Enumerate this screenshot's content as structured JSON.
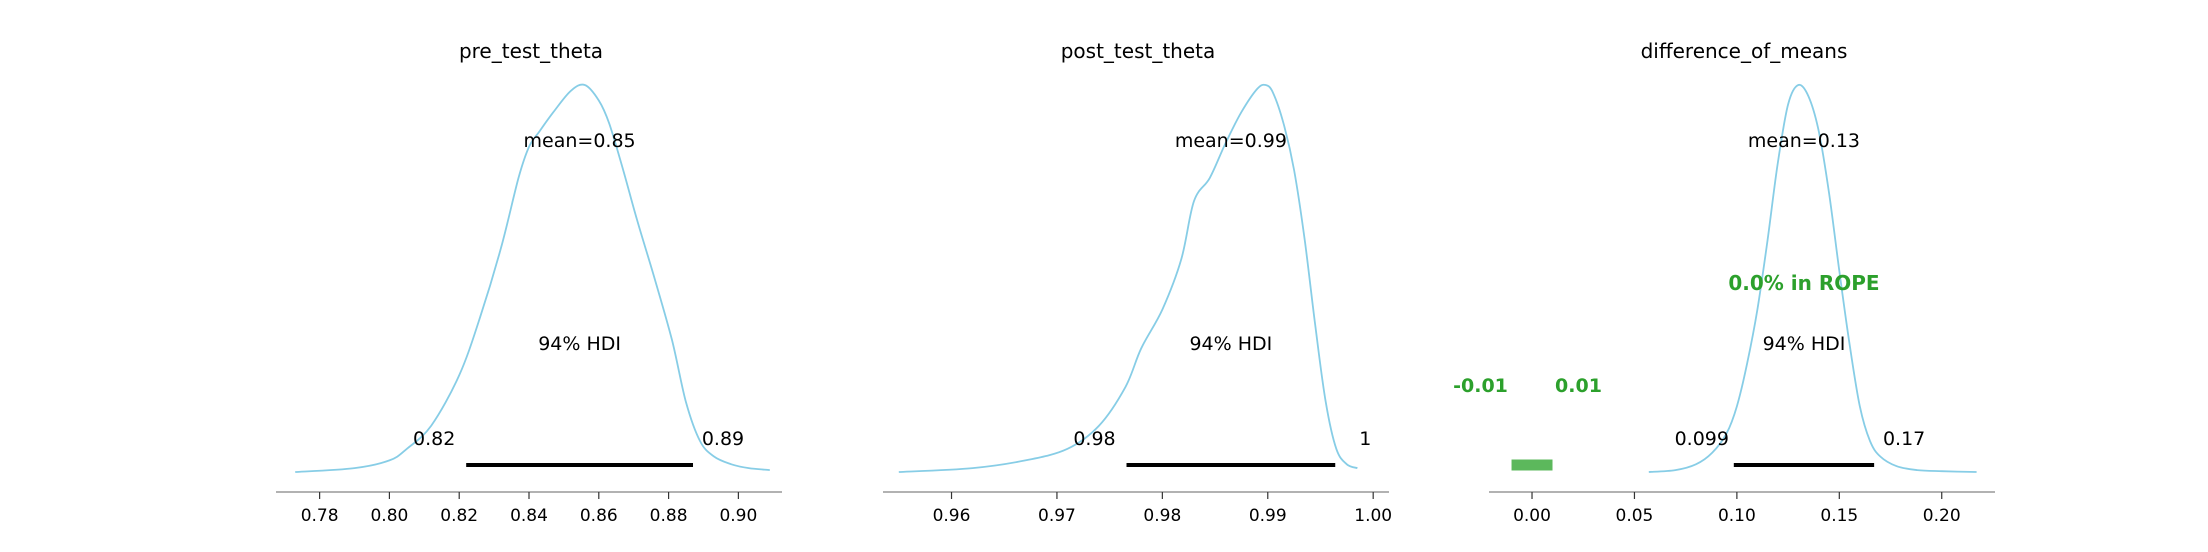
{
  "chart_data": [
    {
      "type": "area",
      "title": "pre_test_theta",
      "xlim": [
        0.7675,
        0.9125
      ],
      "ticks": [
        0.78,
        0.8,
        0.82,
        0.84,
        0.86,
        0.88,
        0.9
      ],
      "tick_labels": [
        "0.78",
        "0.80",
        "0.82",
        "0.84",
        "0.86",
        "0.88",
        "0.90"
      ],
      "grid": false,
      "mean_label": "mean=0.85",
      "hdi_label": "94% HDI",
      "hdi": [
        0.822,
        0.887
      ],
      "hdi_low_label": "0.82",
      "hdi_high_label": "0.89",
      "density": {
        "x": [
          0.773,
          0.79,
          0.8,
          0.805,
          0.812,
          0.82,
          0.826,
          0.832,
          0.837,
          0.84,
          0.843,
          0.847,
          0.852,
          0.856,
          0.86,
          0.863,
          0.867,
          0.871,
          0.876,
          0.881,
          0.885,
          0.889,
          0.893,
          0.898,
          0.903,
          0.909
        ],
        "y": [
          0.0,
          0.01,
          0.03,
          0.06,
          0.12,
          0.25,
          0.4,
          0.58,
          0.76,
          0.84,
          0.88,
          0.93,
          0.985,
          1.0,
          0.96,
          0.9,
          0.78,
          0.65,
          0.5,
          0.34,
          0.18,
          0.08,
          0.04,
          0.02,
          0.01,
          0.005
        ]
      }
    },
    {
      "type": "area",
      "title": "post_test_theta",
      "xlim": [
        0.9535,
        1.0015
      ],
      "ticks": [
        0.96,
        0.97,
        0.98,
        0.99,
        1.0
      ],
      "tick_labels": [
        "0.96",
        "0.97",
        "0.98",
        "0.99",
        "1.00"
      ],
      "grid": false,
      "mean_label": "mean=0.99",
      "hdi_label": "94% HDI",
      "hdi": [
        0.9766,
        0.9964
      ],
      "hdi_low_label": "0.98",
      "hdi_high_label": "1",
      "density": {
        "x": [
          0.955,
          0.962,
          0.967,
          0.971,
          0.974,
          0.9765,
          0.978,
          0.98,
          0.9818,
          0.983,
          0.9845,
          0.986,
          0.9875,
          0.989,
          0.9898,
          0.9905,
          0.9915,
          0.9925,
          0.9935,
          0.9945,
          0.9955,
          0.9965,
          0.9975,
          0.9985
        ],
        "y": [
          0.0,
          0.01,
          0.03,
          0.06,
          0.12,
          0.22,
          0.32,
          0.42,
          0.55,
          0.7,
          0.76,
          0.85,
          0.93,
          0.99,
          1.0,
          0.98,
          0.9,
          0.78,
          0.6,
          0.38,
          0.18,
          0.06,
          0.02,
          0.01
        ]
      }
    },
    {
      "type": "area",
      "title": "difference_of_means",
      "xlim": [
        -0.021,
        0.226
      ],
      "ticks": [
        0.0,
        0.05,
        0.1,
        0.15,
        0.2
      ],
      "tick_labels": [
        "0.00",
        "0.05",
        "0.10",
        "0.15",
        "0.20"
      ],
      "grid": false,
      "mean_label": "mean=0.13",
      "hdi_label": "94% HDI",
      "hdi": [
        0.0985,
        0.167
      ],
      "hdi_low_label": "0.099",
      "hdi_high_label": "0.17",
      "rope": [
        -0.01,
        0.01
      ],
      "rope_low_label": "-0.01",
      "rope_high_label": "0.01",
      "rope_label": "0.0% in ROPE",
      "rope_color": "#5cb85c",
      "rope_text_color": "#2ca02c",
      "density": {
        "x": [
          0.057,
          0.07,
          0.08,
          0.088,
          0.095,
          0.1,
          0.105,
          0.11,
          0.115,
          0.12,
          0.125,
          0.13,
          0.135,
          0.14,
          0.145,
          0.15,
          0.155,
          0.16,
          0.165,
          0.17,
          0.178,
          0.188,
          0.2,
          0.217
        ],
        "y": [
          0.0,
          0.005,
          0.02,
          0.05,
          0.1,
          0.17,
          0.28,
          0.42,
          0.6,
          0.8,
          0.95,
          1.0,
          0.97,
          0.88,
          0.72,
          0.52,
          0.33,
          0.17,
          0.08,
          0.04,
          0.015,
          0.005,
          0.002,
          0.0
        ]
      }
    }
  ],
  "style": {
    "kde_color": "#87cde6",
    "hdi_color": "#000000",
    "axis_color": "#999999",
    "text_color": "#000000"
  }
}
